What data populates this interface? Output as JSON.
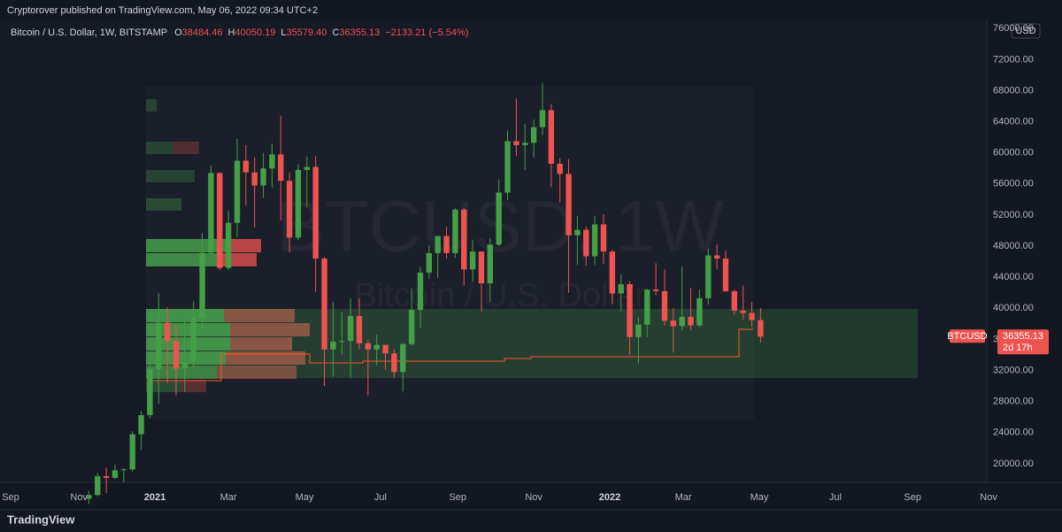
{
  "header": {
    "publisher": "Cryptorover published on TradingView.com, May 06, 2022 09:34 UTC+2",
    "brand": "TradingView"
  },
  "chart_data": {
    "type": "candlestick",
    "title": "Bitcoin / U.S. Dollar, 1W, BITSTAMP",
    "symbol": "BTCUSD",
    "currency": "USD",
    "watermark": "BTCUSD, 1W",
    "watermark_subtitle": "Bitcoin / U.S. Dollar",
    "ohlc_letters": [
      "O",
      "H",
      "L",
      "C"
    ],
    "last_labels": [
      "38484.46",
      "40050.19",
      "35579.40",
      "36355.13"
    ],
    "change_label": "−2133.21 (−5.54%)",
    "countdown": "2d 17h",
    "up_color": "#43a047",
    "down_color": "#ef5350",
    "categories": [
      null,
      null,
      null,
      null,
      null,
      null,
      null,
      null,
      null,
      null,
      null,
      null,
      null,
      null,
      null,
      null,
      null,
      null,
      null,
      null,
      null,
      null,
      null,
      null,
      null,
      null,
      null,
      null,
      null,
      null,
      null,
      null,
      null,
      null,
      null,
      null,
      null,
      null,
      null,
      null,
      null,
      null,
      null,
      null,
      null,
      null,
      null,
      null,
      null,
      null,
      null,
      null,
      null,
      null,
      null,
      null,
      null,
      null,
      null,
      null,
      null,
      null,
      null,
      null,
      null,
      null,
      null,
      null,
      null,
      null,
      null,
      null,
      null,
      null,
      null,
      null,
      null,
      null
    ],
    "open": [
      15480,
      15970,
      18400,
      18180,
      19150,
      19270,
      23800,
      26250,
      32200,
      38150,
      35800,
      32250,
      33100,
      38800,
      47150,
      57400,
      45200,
      51000,
      59000,
      57500,
      55800,
      58000,
      59800,
      56400,
      49100,
      57800,
      58200,
      46400,
      34700,
      35700,
      35800,
      39000,
      35500,
      34700,
      35300,
      34200,
      31800,
      35400,
      39800,
      44600,
      47100,
      49300,
      47100,
      52700,
      45000,
      47300,
      43200,
      48200,
      54900,
      61500,
      61000,
      61300,
      63300,
      65500,
      58600,
      57300,
      49400,
      50100,
      46700,
      50800,
      47300,
      41900,
      43100,
      36300,
      37900,
      42400,
      42200,
      38400,
      37700,
      38900,
      37800,
      41300,
      46800,
      46400,
      42200,
      39700,
      39400,
      38484.46
    ],
    "high": [
      16480,
      18800,
      19480,
      19900,
      19420,
      24200,
      26800,
      33300,
      41950,
      40100,
      37850,
      38500,
      40900,
      49700,
      58350,
      57500,
      52600,
      61800,
      61000,
      59400,
      60000,
      61200,
      64800,
      57500,
      58500,
      59500,
      59600,
      46600,
      40800,
      39500,
      41300,
      41300,
      36000,
      36600,
      35300,
      34700,
      35500,
      42600,
      45300,
      48100,
      49300,
      50500,
      52900,
      52900,
      48800,
      47300,
      49000,
      56600,
      62900,
      67000,
      63700,
      64300,
      69000,
      66300,
      59300,
      59200,
      51900,
      50500,
      51900,
      52100,
      47500,
      44400,
      43500,
      38900,
      42500,
      45800,
      45000,
      40000,
      45400,
      42600,
      42400,
      47700,
      48200,
      47400,
      42400,
      42900,
      40800,
      40050.19
    ],
    "low": [
      14800,
      15800,
      16200,
      18000,
      17600,
      19000,
      21800,
      25900,
      27700,
      30400,
      28800,
      29200,
      32300,
      37400,
      46800,
      44900,
      44900,
      49200,
      53200,
      50400,
      54200,
      55500,
      51300,
      47200,
      48800,
      53000,
      42100,
      30000,
      31200,
      34000,
      31000,
      34800,
      28800,
      32700,
      32100,
      31000,
      29300,
      35200,
      37500,
      43800,
      43900,
      46400,
      46500,
      42900,
      43400,
      39600,
      40800,
      48000,
      53900,
      59600,
      57800,
      59400,
      62300,
      55600,
      53600,
      42000,
      45600,
      45500,
      45600,
      45700,
      40600,
      39600,
      34000,
      32900,
      36300,
      41700,
      37800,
      34300,
      37200,
      37200,
      37600,
      40500,
      45000,
      42100,
      39200,
      38500,
      37600,
      35579.4
    ],
    "close": [
      15970,
      18400,
      18180,
      19150,
      19270,
      23800,
      26250,
      32200,
      38150,
      35800,
      32250,
      33100,
      38800,
      47150,
      57400,
      45200,
      51000,
      59000,
      57500,
      55800,
      58000,
      59800,
      56400,
      49100,
      57800,
      58200,
      46400,
      34700,
      35700,
      35800,
      39000,
      35500,
      34700,
      35300,
      34200,
      31800,
      35400,
      39800,
      44600,
      47100,
      49300,
      47100,
      52700,
      45000,
      47300,
      43200,
      48200,
      54900,
      61500,
      61000,
      61300,
      63300,
      65500,
      58600,
      57300,
      49400,
      50100,
      46700,
      50800,
      47300,
      41900,
      43100,
      36300,
      37900,
      42400,
      42200,
      38400,
      37700,
      38900,
      37800,
      41300,
      46800,
      46400,
      42200,
      39700,
      39400,
      38500,
      36355.13
    ],
    "xticks": [
      {
        "value": -9.86,
        "label": "Sep"
      },
      {
        "value": -1.14,
        "label": "Nov"
      },
      {
        "value": 7.57,
        "label": "2021"
      },
      {
        "value": 16,
        "label": "Mar"
      },
      {
        "value": 24.71,
        "label": "May"
      },
      {
        "value": 33.43,
        "label": "Jul"
      },
      {
        "value": 42.29,
        "label": "Sep"
      },
      {
        "value": 51,
        "label": "Nov"
      },
      {
        "value": 59.71,
        "label": "2022"
      },
      {
        "value": 68.14,
        "label": "Mar"
      },
      {
        "value": 76.86,
        "label": "May"
      },
      {
        "value": 85.57,
        "label": "Jul"
      },
      {
        "value": 94.43,
        "label": "Sep"
      },
      {
        "value": 103.14,
        "label": "Nov"
      }
    ],
    "ylim": [
      17590,
      77170
    ],
    "yticks": [
      {
        "value": 20000,
        "label": "20000.00"
      },
      {
        "value": 24000,
        "label": "24000.00"
      },
      {
        "value": 28000,
        "label": "28000.00"
      },
      {
        "value": 32000,
        "label": "32000.00"
      },
      {
        "value": 36000,
        "label": "36000.00"
      },
      {
        "value": 40000,
        "label": "40000.00"
      },
      {
        "value": 44000,
        "label": "44000.00"
      },
      {
        "value": 48000,
        "label": "48000.00"
      },
      {
        "value": 52000,
        "label": "52000.00"
      },
      {
        "value": 56000,
        "label": "56000.00"
      },
      {
        "value": 60000,
        "label": "60000.00"
      },
      {
        "value": 64000,
        "label": "64000.00"
      },
      {
        "value": 68000,
        "label": "68000.00"
      },
      {
        "value": 72000,
        "label": "72000.00"
      },
      {
        "value": 76000,
        "label": "76000.00"
      }
    ],
    "grid": false
  }
}
